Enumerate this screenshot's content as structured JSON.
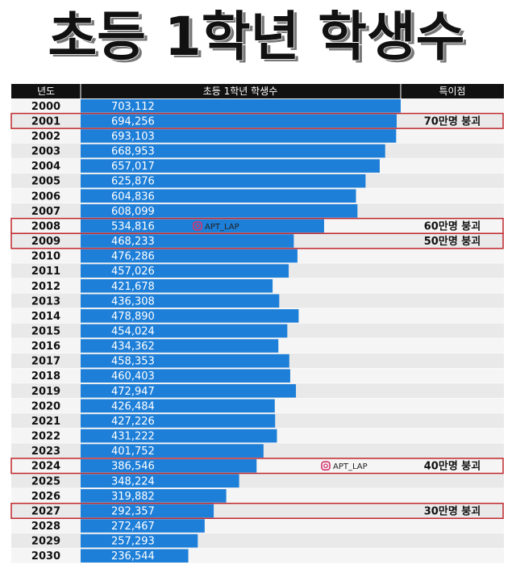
{
  "chart_data": {
    "type": "bar",
    "orientation": "horizontal",
    "title": "초등 1학년 학생수",
    "columns": [
      "년도",
      "초등 1학년 학생수",
      "특이점"
    ],
    "color": "#1e7fd8",
    "categories": [
      "2000",
      "2001",
      "2002",
      "2003",
      "2004",
      "2005",
      "2006",
      "2007",
      "2008",
      "2009",
      "2010",
      "2011",
      "2012",
      "2013",
      "2014",
      "2015",
      "2016",
      "2017",
      "2018",
      "2019",
      "2020",
      "2021",
      "2022",
      "2023",
      "2024",
      "2025",
      "2026",
      "2027",
      "2028",
      "2029",
      "2030"
    ],
    "values": [
      703112,
      694256,
      693103,
      668953,
      657017,
      625876,
      604836,
      608099,
      534816,
      468233,
      476286,
      457026,
      421678,
      436308,
      478890,
      454024,
      434362,
      458353,
      460403,
      472947,
      426484,
      427226,
      431222,
      401752,
      386546,
      348224,
      319882,
      292357,
      272467,
      257293,
      236544
    ],
    "value_labels": [
      "703,112",
      "694,256",
      "693,103",
      "668,953",
      "657,017",
      "625,876",
      "604,836",
      "608,099",
      "534,816",
      "468,233",
      "476,286",
      "457,026",
      "421,678",
      "436,308",
      "478,890",
      "454,024",
      "434,362",
      "458,353",
      "460,403",
      "472,947",
      "426,484",
      "427,226",
      "431,222",
      "401,752",
      "386,546",
      "348,224",
      "319,882",
      "292,357",
      "272,467",
      "257,293",
      "236,544"
    ],
    "notes": [
      null,
      "70만명 붕괴",
      null,
      null,
      null,
      null,
      null,
      null,
      "60만명 붕괴",
      "50만명 붕괴",
      null,
      null,
      null,
      null,
      null,
      null,
      null,
      null,
      null,
      null,
      null,
      null,
      null,
      null,
      "40만명 붕괴",
      null,
      null,
      "30만명 붕괴",
      null,
      null,
      null
    ],
    "watermarks": [
      "APT_LAP",
      "APT_LAP"
    ]
  }
}
